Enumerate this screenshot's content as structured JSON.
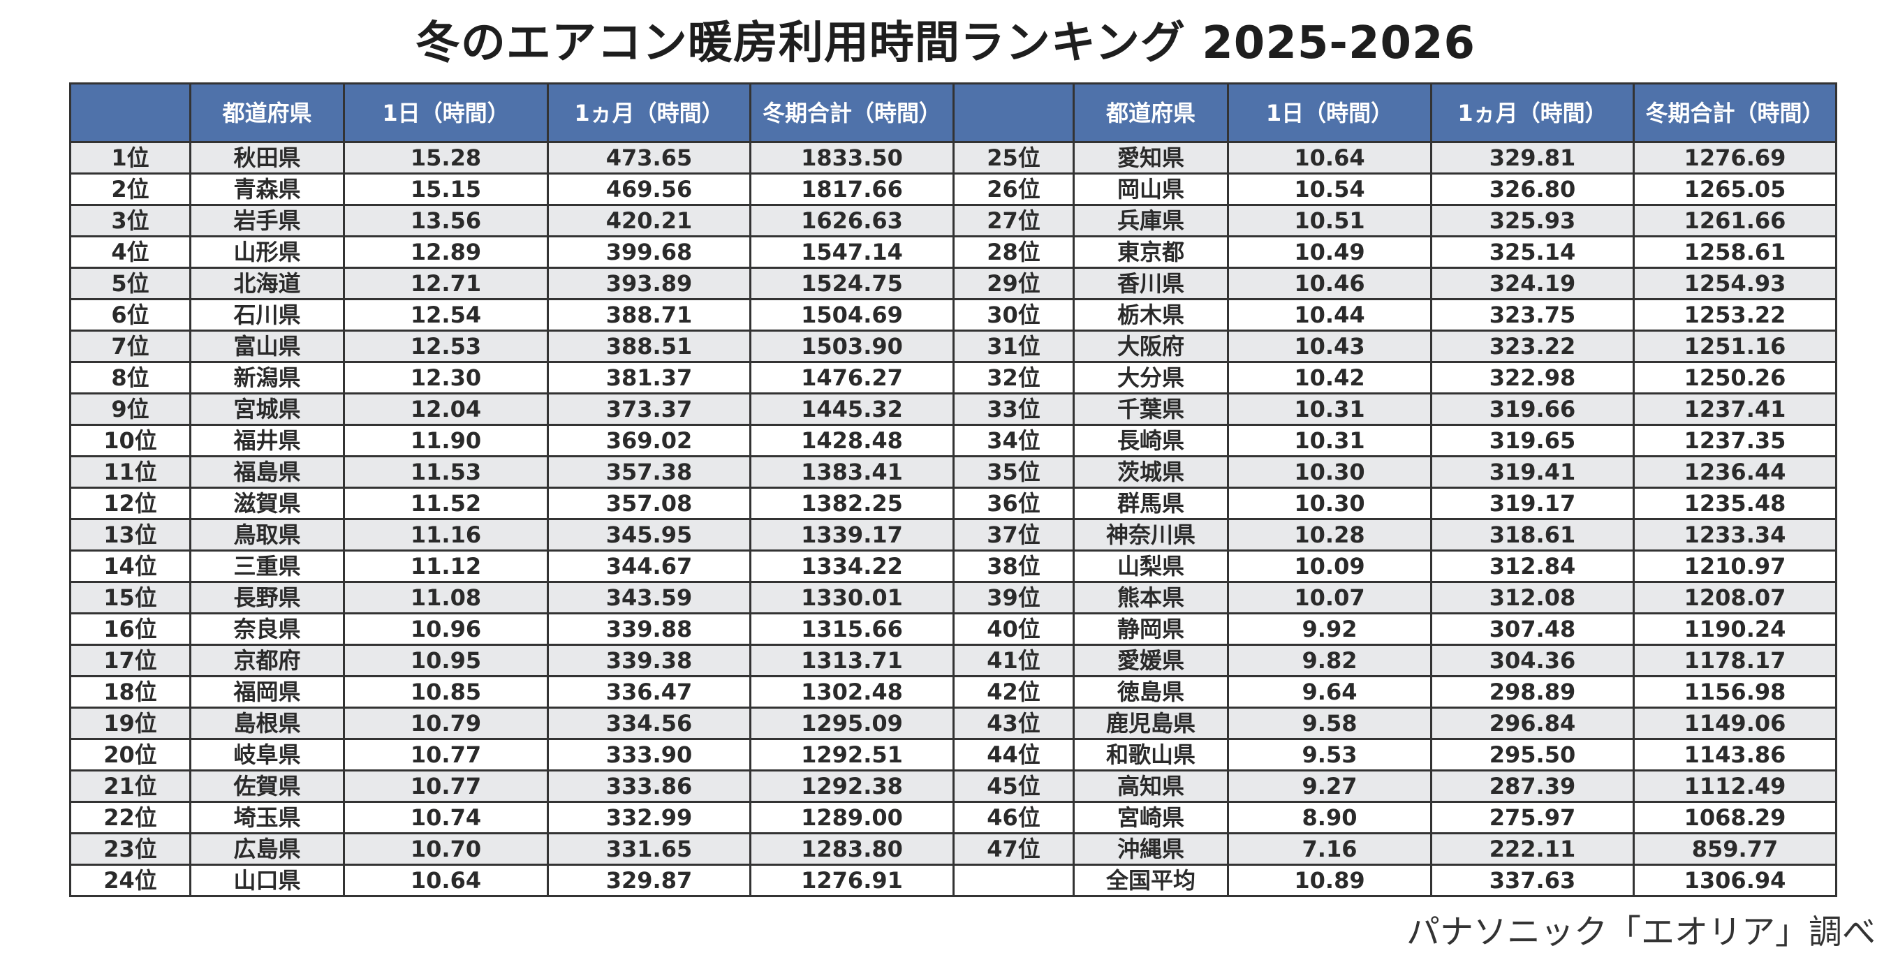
{
  "title": "冬のエアコン暖房利用時間ランキング 2025-2026",
  "headers": [
    "",
    "都道府県",
    "1日（時間）",
    "1ヵ月（時間）",
    "冬期合計（時間）"
  ],
  "colors": {
    "header_bg": "#4f72aa",
    "stripe": "#e8e9eb",
    "border": "#333333"
  },
  "rows": [
    [
      "1位",
      "秋田県",
      "15.28",
      "473.65",
      "1833.50"
    ],
    [
      "2位",
      "青森県",
      "15.15",
      "469.56",
      "1817.66"
    ],
    [
      "3位",
      "岩手県",
      "13.56",
      "420.21",
      "1626.63"
    ],
    [
      "4位",
      "山形県",
      "12.89",
      "399.68",
      "1547.14"
    ],
    [
      "5位",
      "北海道",
      "12.71",
      "393.89",
      "1524.75"
    ],
    [
      "6位",
      "石川県",
      "12.54",
      "388.71",
      "1504.69"
    ],
    [
      "7位",
      "富山県",
      "12.53",
      "388.51",
      "1503.90"
    ],
    [
      "8位",
      "新潟県",
      "12.30",
      "381.37",
      "1476.27"
    ],
    [
      "9位",
      "宮城県",
      "12.04",
      "373.37",
      "1445.32"
    ],
    [
      "10位",
      "福井県",
      "11.90",
      "369.02",
      "1428.48"
    ],
    [
      "11位",
      "福島県",
      "11.53",
      "357.38",
      "1383.41"
    ],
    [
      "12位",
      "滋賀県",
      "11.52",
      "357.08",
      "1382.25"
    ],
    [
      "13位",
      "鳥取県",
      "11.16",
      "345.95",
      "1339.17"
    ],
    [
      "14位",
      "三重県",
      "11.12",
      "344.67",
      "1334.22"
    ],
    [
      "15位",
      "長野県",
      "11.08",
      "343.59",
      "1330.01"
    ],
    [
      "16位",
      "奈良県",
      "10.96",
      "339.88",
      "1315.66"
    ],
    [
      "17位",
      "京都府",
      "10.95",
      "339.38",
      "1313.71"
    ],
    [
      "18位",
      "福岡県",
      "10.85",
      "336.47",
      "1302.48"
    ],
    [
      "19位",
      "島根県",
      "10.79",
      "334.56",
      "1295.09"
    ],
    [
      "20位",
      "岐阜県",
      "10.77",
      "333.90",
      "1292.51"
    ],
    [
      "21位",
      "佐賀県",
      "10.77",
      "333.86",
      "1292.38"
    ],
    [
      "22位",
      "埼玉県",
      "10.74",
      "332.99",
      "1289.00"
    ],
    [
      "23位",
      "広島県",
      "10.70",
      "331.65",
      "1283.80"
    ],
    [
      "24位",
      "山口県",
      "10.64",
      "329.87",
      "1276.91"
    ],
    [
      "25位",
      "愛知県",
      "10.64",
      "329.81",
      "1276.69"
    ],
    [
      "26位",
      "岡山県",
      "10.54",
      "326.80",
      "1265.05"
    ],
    [
      "27位",
      "兵庫県",
      "10.51",
      "325.93",
      "1261.66"
    ],
    [
      "28位",
      "東京都",
      "10.49",
      "325.14",
      "1258.61"
    ],
    [
      "29位",
      "香川県",
      "10.46",
      "324.19",
      "1254.93"
    ],
    [
      "30位",
      "栃木県",
      "10.44",
      "323.75",
      "1253.22"
    ],
    [
      "31位",
      "大阪府",
      "10.43",
      "323.22",
      "1251.16"
    ],
    [
      "32位",
      "大分県",
      "10.42",
      "322.98",
      "1250.26"
    ],
    [
      "33位",
      "千葉県",
      "10.31",
      "319.66",
      "1237.41"
    ],
    [
      "34位",
      "長崎県",
      "10.31",
      "319.65",
      "1237.35"
    ],
    [
      "35位",
      "茨城県",
      "10.30",
      "319.41",
      "1236.44"
    ],
    [
      "36位",
      "群馬県",
      "10.30",
      "319.17",
      "1235.48"
    ],
    [
      "37位",
      "神奈川県",
      "10.28",
      "318.61",
      "1233.34"
    ],
    [
      "38位",
      "山梨県",
      "10.09",
      "312.84",
      "1210.97"
    ],
    [
      "39位",
      "熊本県",
      "10.07",
      "312.08",
      "1208.07"
    ],
    [
      "40位",
      "静岡県",
      "9.92",
      "307.48",
      "1190.24"
    ],
    [
      "41位",
      "愛媛県",
      "9.82",
      "304.36",
      "1178.17"
    ],
    [
      "42位",
      "徳島県",
      "9.64",
      "298.89",
      "1156.98"
    ],
    [
      "43位",
      "鹿児島県",
      "9.58",
      "296.84",
      "1149.06"
    ],
    [
      "44位",
      "和歌山県",
      "9.53",
      "295.50",
      "1143.86"
    ],
    [
      "45位",
      "高知県",
      "9.27",
      "287.39",
      "1112.49"
    ],
    [
      "46位",
      "宮崎県",
      "8.90",
      "275.97",
      "1068.29"
    ],
    [
      "47位",
      "沖縄県",
      "7.16",
      "222.11",
      "859.77"
    ],
    [
      "",
      "全国平均",
      "10.89",
      "337.63",
      "1306.94"
    ]
  ],
  "source": "パナソニック「エオリア」調べ"
}
